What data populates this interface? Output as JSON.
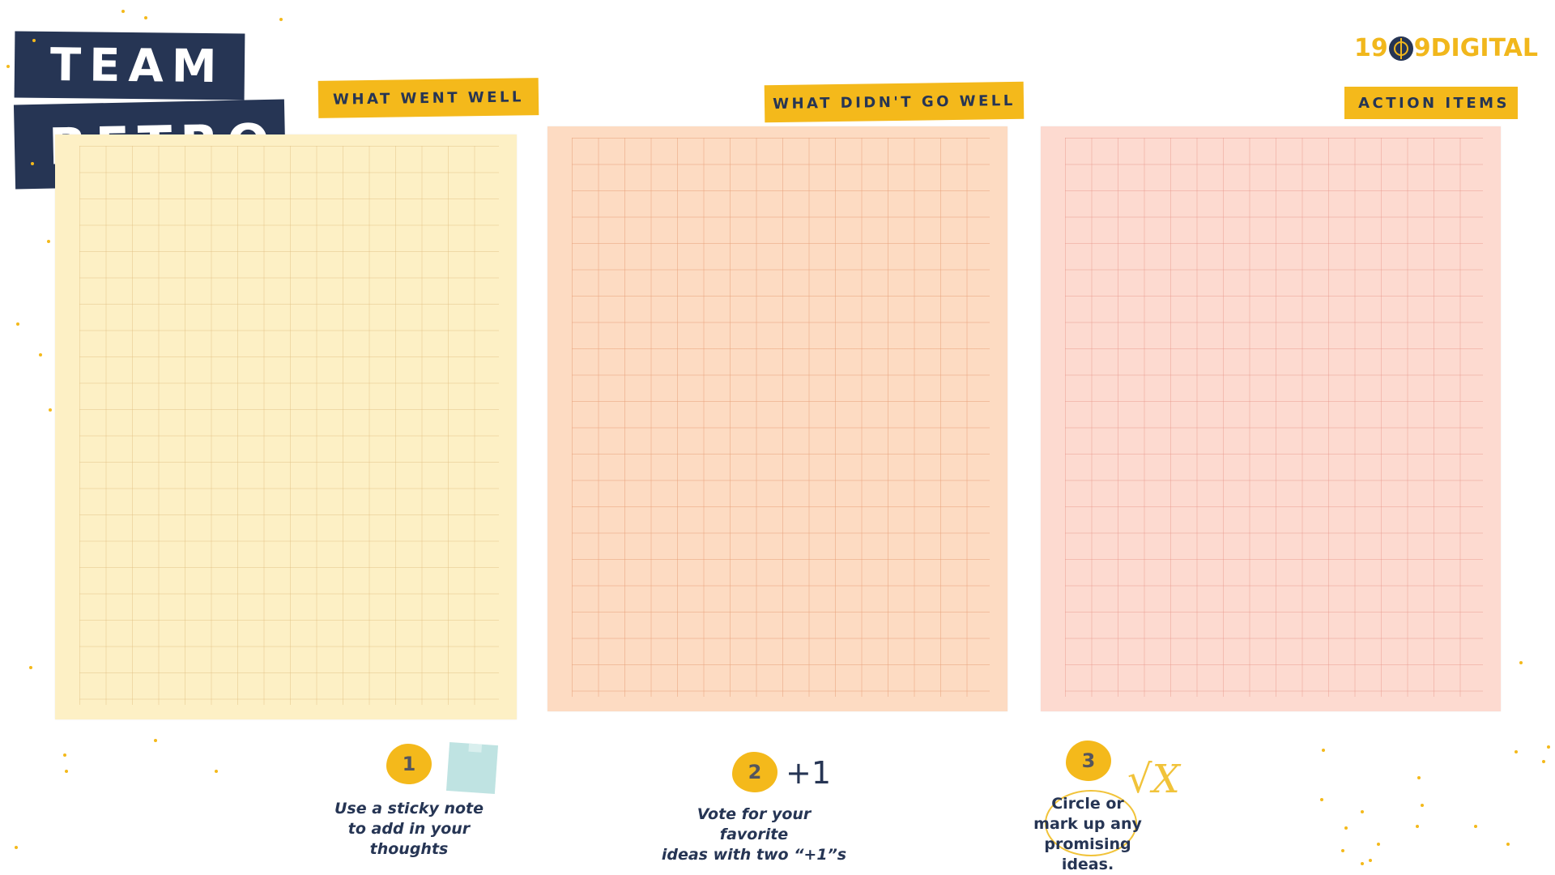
{
  "title": {
    "line1": "TEAM",
    "line2": "RETRO"
  },
  "logo": {
    "prefix": "19",
    "middle": "9",
    "suffix": "DIGITAL"
  },
  "columns": [
    {
      "label": "WHAT WENT WELL"
    },
    {
      "label": "WHAT DIDN'T GO WELL"
    },
    {
      "label": "ACTION ITEMS"
    }
  ],
  "steps": [
    {
      "number": "1",
      "text": "Use a sticky note\nto add in your\nthoughts"
    },
    {
      "number": "2",
      "text": "Vote for your\nfavorite\nideas with two “+1”s",
      "extra": "+1"
    },
    {
      "number": "3",
      "text": "Circle or\nmark up any\npromising\nideas.",
      "extra": "√X"
    }
  ],
  "colors": {
    "navy": "#263554",
    "yellow": "#f4b91b",
    "paper_yellow": "#fdf0c5",
    "paper_orange": "#fddbc2",
    "paper_pink": "#fddad0"
  },
  "icons": [
    "target-logo-icon",
    "sticky-note-icon",
    "check-x-icon"
  ]
}
